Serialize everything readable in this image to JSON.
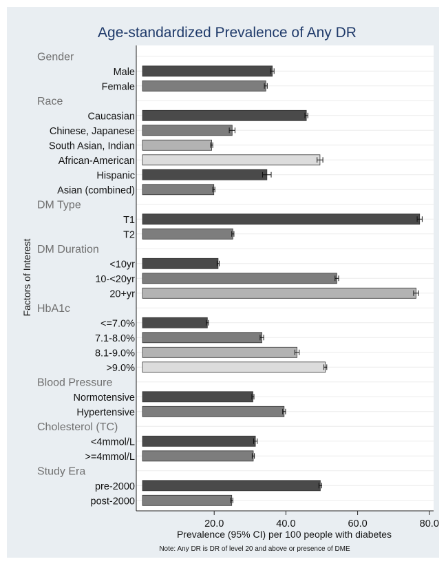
{
  "chart_data": {
    "type": "bar",
    "orientation": "horizontal",
    "title": "Age-standardized Prevalence of Any DR",
    "xlabel": "Prevalence (95% CI) per 100 people with diabetes",
    "ylabel": "Factors of Interest",
    "note": "Note:  Any DR is DR of level 20 and above or presence of DME",
    "xlim": [
      0,
      80
    ],
    "xticks": [
      "20.0",
      "40.0",
      "60.0",
      "80.0"
    ],
    "grid": true,
    "colors": {
      "dark": "#4a4a4a",
      "medium": "#7d7d7d",
      "light": "#b3b3b3",
      "lightest": "#dcdcdc",
      "group_label": "#707070",
      "title": "#1f3a6a",
      "outer_bg": "#e9eef2"
    },
    "groups": [
      {
        "name": "Gender",
        "bars": [
          {
            "label": "Male",
            "value": 36.2,
            "ci": [
              35.7,
              36.7
            ],
            "shade": "dark"
          },
          {
            "label": "Female",
            "value": 34.4,
            "ci": [
              34.0,
              34.8
            ],
            "shade": "medium"
          }
        ]
      },
      {
        "name": "Race",
        "bars": [
          {
            "label": "Caucasian",
            "value": 45.7,
            "ci": [
              45.3,
              46.1
            ],
            "shade": "dark"
          },
          {
            "label": "Chinese, Japanese",
            "value": 25.0,
            "ci": [
              24.2,
              25.8
            ],
            "shade": "medium"
          },
          {
            "label": "South Asian, Indian",
            "value": 19.3,
            "ci": [
              19.0,
              19.6
            ],
            "shade": "light"
          },
          {
            "label": "African-American",
            "value": 49.5,
            "ci": [
              48.7,
              50.3
            ],
            "shade": "lightest"
          },
          {
            "label": "Hispanic",
            "value": 34.7,
            "ci": [
              33.5,
              35.9
            ],
            "shade": "dark"
          },
          {
            "label": "Asian (combined)",
            "value": 19.9,
            "ci": [
              19.6,
              20.2
            ],
            "shade": "medium"
          }
        ]
      },
      {
        "name": "DM Type",
        "bars": [
          {
            "label": "T1",
            "value": 77.3,
            "ci": [
              76.6,
              78.0
            ],
            "shade": "dark"
          },
          {
            "label": "T2",
            "value": 25.2,
            "ci": [
              24.9,
              25.5
            ],
            "shade": "medium"
          }
        ]
      },
      {
        "name": "DM Duration",
        "bars": [
          {
            "label": "<10yr",
            "value": 21.1,
            "ci": [
              20.8,
              21.4
            ],
            "shade": "dark"
          },
          {
            "label": "10-<20yr",
            "value": 54.2,
            "ci": [
              53.7,
              54.7
            ],
            "shade": "medium"
          },
          {
            "label": "20+yr",
            "value": 76.3,
            "ci": [
              75.6,
              77.0
            ],
            "shade": "light"
          }
        ]
      },
      {
        "name": "HbA1c",
        "bars": [
          {
            "label": "<=7.0%",
            "value": 18.1,
            "ci": [
              17.8,
              18.4
            ],
            "shade": "dark"
          },
          {
            "label": "7.1-8.0%",
            "value": 33.3,
            "ci": [
              32.8,
              33.8
            ],
            "shade": "medium"
          },
          {
            "label": "8.1-9.0%",
            "value": 43.1,
            "ci": [
              42.5,
              43.7
            ],
            "shade": "light"
          },
          {
            "label": ">9.0%",
            "value": 51.0,
            "ci": [
              50.6,
              51.4
            ],
            "shade": "lightest"
          }
        ]
      },
      {
        "name": "Blood Pressure",
        "bars": [
          {
            "label": "Normotensive",
            "value": 30.8,
            "ci": [
              30.5,
              31.1
            ],
            "shade": "dark"
          },
          {
            "label": "Hypertensive",
            "value": 39.5,
            "ci": [
              39.1,
              39.9
            ],
            "shade": "medium"
          }
        ]
      },
      {
        "name": "Cholesterol (TC)",
        "bars": [
          {
            "label": "<4mmol/L",
            "value": 31.5,
            "ci": [
              31.0,
              32.0
            ],
            "shade": "dark"
          },
          {
            "label": ">=4mmol/L",
            "value": 30.9,
            "ci": [
              30.6,
              31.2
            ],
            "shade": "medium"
          }
        ]
      },
      {
        "name": "Study Era",
        "bars": [
          {
            "label": "pre-2000",
            "value": 49.6,
            "ci": [
              49.2,
              50.0
            ],
            "shade": "dark"
          },
          {
            "label": "post-2000",
            "value": 24.9,
            "ci": [
              24.6,
              25.2
            ],
            "shade": "medium"
          }
        ]
      }
    ]
  }
}
